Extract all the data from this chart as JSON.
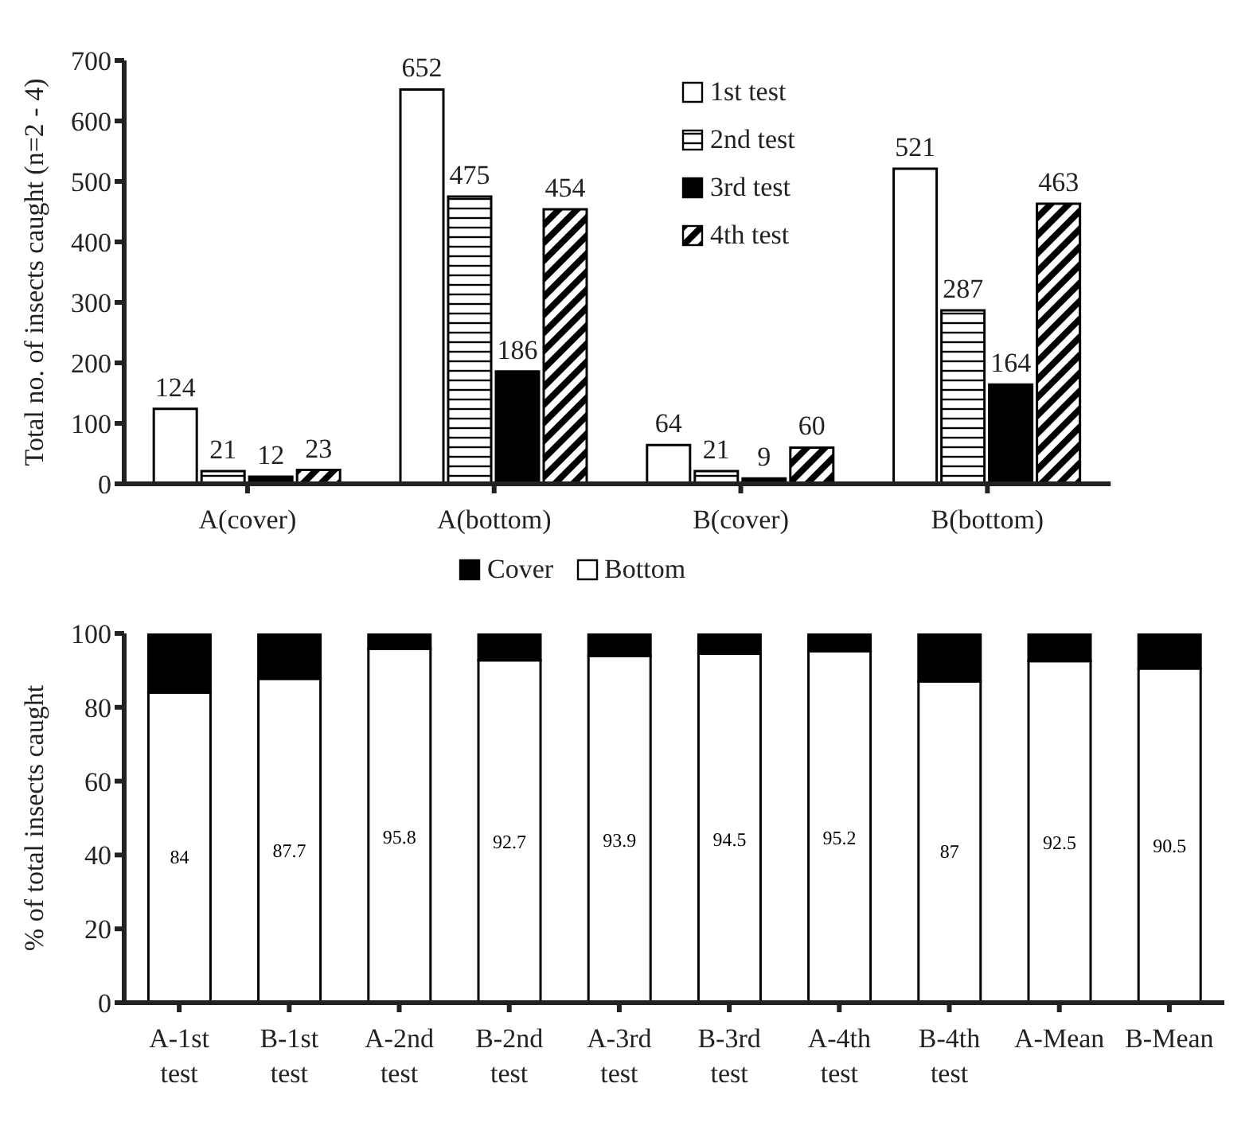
{
  "chart_data": [
    {
      "type": "bar",
      "ylabel": "Total no. of insects caught (n=2 - 4)",
      "categories": [
        "A(cover)",
        "A(bottom)",
        "B(cover)",
        "B(bottom)"
      ],
      "series": [
        {
          "name": "1st test",
          "color": "#ffffff",
          "values": [
            124,
            652,
            64,
            521
          ]
        },
        {
          "name": "2nd test",
          "color": "#000000",
          "values": [
            21,
            475,
            21,
            287
          ]
        },
        {
          "name": "3rd test",
          "color": "#000000",
          "values": [
            12,
            186,
            9,
            164
          ]
        },
        {
          "name": "4th test",
          "color": "#000000",
          "values": [
            23,
            454,
            60,
            463
          ]
        }
      ],
      "ylim": [
        0,
        700
      ],
      "yticks": [
        0,
        100,
        200,
        300,
        400,
        500,
        600,
        700
      ],
      "data_labels": true,
      "legend": "top right",
      "grid": false
    },
    {
      "type": "bar",
      "stacked": true,
      "ylabel": "% of total insects caught",
      "categories": [
        "A-1st test",
        "B-1st test",
        "A-2nd test",
        "B-2nd test",
        "A-3rd test",
        "B-3rd test",
        "A-4th test",
        "B-4th test",
        "A-Mean",
        "B-Mean"
      ],
      "series": [
        {
          "name": "Bottom",
          "color": "#ffffff",
          "values": [
            84,
            87.7,
            95.8,
            92.7,
            93.9,
            94.5,
            95.2,
            87,
            92.5,
            90.5
          ],
          "value_labels": [
            "84",
            "87.7",
            "95.8",
            "92.7",
            "93.9",
            "94.5",
            "95.2",
            "87",
            "92.5",
            "90.5"
          ]
        },
        {
          "name": "Cover",
          "color": "#000000",
          "values": [
            16,
            12.3,
            4.2,
            7.3,
            6.1,
            5.5,
            4.8,
            13,
            7.5,
            9.5
          ]
        }
      ],
      "ylim": [
        0,
        100
      ],
      "yticks": [
        0,
        20,
        40,
        60,
        80,
        100
      ],
      "legend": "top",
      "grid": false
    }
  ]
}
